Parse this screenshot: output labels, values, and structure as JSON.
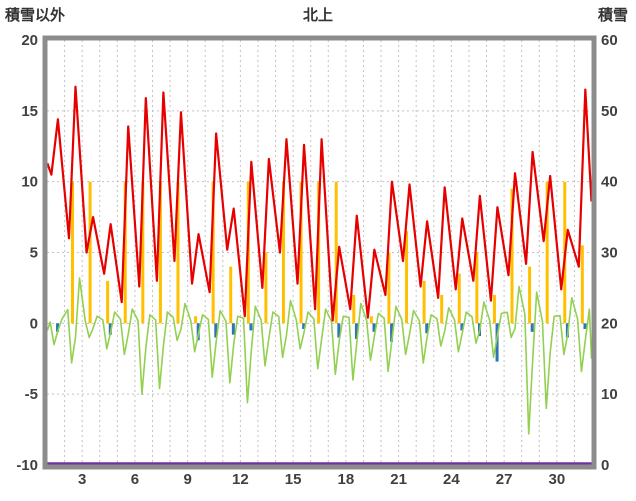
{
  "chart_data": {
    "type": "line",
    "title": "北上",
    "left_axis": {
      "title": "積雪以外",
      "min": -10,
      "max": 20,
      "ticks": [
        20,
        15,
        10,
        5,
        0,
        -5,
        -10
      ],
      "gridline_values": [
        15,
        10,
        5,
        0,
        -5
      ]
    },
    "right_axis": {
      "title": "積雪",
      "min": 0,
      "max": 60,
      "ticks": [
        60,
        50,
        40,
        30,
        20,
        10,
        0
      ]
    },
    "x_axis": {
      "min": 1,
      "max": 32,
      "days": [
        1,
        2,
        3,
        4,
        5,
        6,
        7,
        8,
        9,
        10,
        11,
        12,
        13,
        14,
        15,
        16,
        17,
        18,
        19,
        20,
        21,
        22,
        23,
        24,
        25,
        26,
        27,
        28,
        29,
        30,
        31
      ],
      "tick_labels": [
        "3",
        "6",
        "9",
        "12",
        "15",
        "18",
        "21",
        "24",
        "27",
        "30"
      ],
      "tick_days": [
        3,
        6,
        9,
        12,
        15,
        18,
        21,
        24,
        27,
        30
      ],
      "daily_gridlines": true
    },
    "series": [
      {
        "name": "red_line",
        "type": "line",
        "axis": "left",
        "color": "#e60000",
        "start": 11.3,
        "end": 8.6,
        "daily_min": [
          10.5,
          6.0,
          5.0,
          3.5,
          1.5,
          2.6,
          3.0,
          4.4,
          2.8,
          2.2,
          5.2,
          0.5,
          2.5,
          5.0,
          2.8,
          1.0,
          0.2,
          1.0,
          0.4,
          2.0,
          4.4,
          2.6,
          1.8,
          2.4,
          3.0,
          1.6,
          3.4,
          4.2,
          5.8,
          2.4,
          4.0
        ],
        "daily_max": [
          14.4,
          16.7,
          7.5,
          7.0,
          13.9,
          15.9,
          16.3,
          14.9,
          6.3,
          13.4,
          8.1,
          11.4,
          11.6,
          13.0,
          12.6,
          13.0,
          5.4,
          7.6,
          5.2,
          10.0,
          9.8,
          7.2,
          9.6,
          7.4,
          9.0,
          8.2,
          10.6,
          12.1,
          10.4,
          6.6,
          16.5
        ]
      },
      {
        "name": "green_line",
        "type": "line",
        "axis": "left",
        "color": "#92d050",
        "start": -0.5,
        "end": -2.5,
        "daily_min": [
          -1.5,
          -2.8,
          -1.0,
          -1.8,
          -2.2,
          -5.0,
          -4.6,
          -1.2,
          -2.0,
          -3.8,
          -4.2,
          -5.6,
          -3.0,
          -2.4,
          -1.8,
          -3.2,
          -3.6,
          -4.0,
          -2.6,
          -3.4,
          -2.2,
          -2.8,
          -1.6,
          -2.0,
          -1.4,
          -2.4,
          -1.0,
          -7.8,
          -6.0,
          -2.2,
          -3.4
        ],
        "daily_max": [
          0.3,
          3.2,
          0.5,
          0.8,
          1.0,
          0.6,
          0.8,
          1.4,
          0.6,
          0.9,
          0.5,
          1.2,
          0.8,
          1.6,
          0.8,
          1.0,
          0.5,
          1.4,
          0.7,
          1.2,
          0.9,
          0.6,
          1.1,
          0.8,
          1.5,
          0.7,
          2.6,
          2.2,
          0.5,
          1.8,
          1.0
        ]
      },
      {
        "name": "orange_bars",
        "type": "bar",
        "axis": "left",
        "color": "#ffc000",
        "values": [
          0,
          10,
          10,
          3,
          10,
          10,
          10,
          10,
          0.5,
          10,
          4,
          10,
          5,
          10,
          10,
          10,
          10,
          2,
          0.5,
          5,
          6.5,
          3,
          2,
          3.5,
          5,
          2,
          9.5,
          4,
          10,
          10,
          5.5
        ]
      },
      {
        "name": "blue_bars",
        "type": "bar",
        "axis": "left",
        "color": "#2e75b6",
        "values": [
          -0.6,
          0,
          0,
          -0.8,
          0,
          0,
          0,
          0,
          -1.2,
          -1.0,
          -0.8,
          -0.5,
          0,
          0,
          -0.4,
          0,
          -1.0,
          -1.1,
          -0.6,
          -1.3,
          0,
          -0.7,
          0,
          -0.5,
          -0.9,
          -2.7,
          0,
          -0.6,
          0,
          -1.0,
          -0.4
        ]
      },
      {
        "name": "purple_line",
        "type": "line",
        "axis": "right",
        "color": "#7030a0",
        "values": [
          0,
          0,
          0,
          0,
          0,
          0,
          0,
          0,
          0,
          0,
          0,
          0,
          0,
          0,
          0,
          0,
          0,
          0,
          0,
          0,
          0,
          0,
          0,
          0,
          0,
          0,
          0,
          0,
          0,
          0,
          0
        ]
      }
    ],
    "plot": {
      "background": "#ffffff",
      "frame_color": "#8c8c8c",
      "grid_color": "#c3c3c3",
      "label_color": "#404040"
    }
  }
}
